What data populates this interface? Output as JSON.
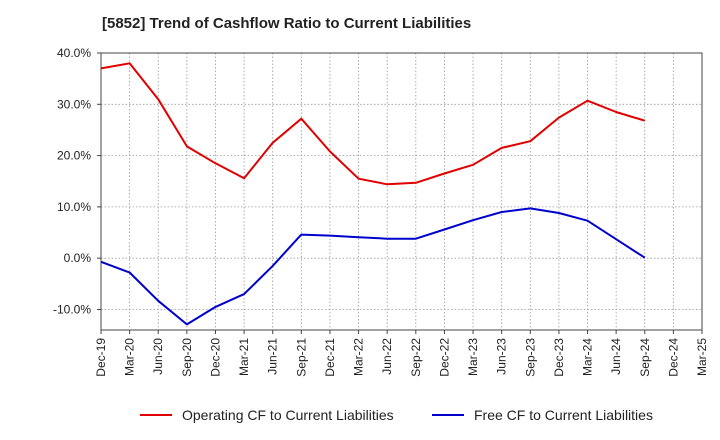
{
  "title": "[5852]  Trend of Cashflow Ratio to Current Liabilities",
  "chart_data": {
    "type": "line",
    "x": [
      "Dec-19",
      "Mar-20",
      "Jun-20",
      "Sep-20",
      "Dec-20",
      "Mar-21",
      "Jun-21",
      "Sep-21",
      "Dec-21",
      "Mar-22",
      "Jun-22",
      "Sep-22",
      "Dec-22",
      "Mar-23",
      "Jun-23",
      "Sep-23",
      "Dec-23",
      "Mar-24",
      "Jun-24",
      "Sep-24",
      "Dec-24",
      "Mar-25"
    ],
    "ylim": [
      -14,
      40
    ],
    "yticks": [
      40,
      30,
      20,
      10,
      0,
      -10
    ],
    "ytick_labels": [
      "40.0%",
      "30.0%",
      "20.0%",
      "10.0%",
      "0.0%",
      "-10.0%"
    ],
    "grid": true,
    "legend_position": "bottom",
    "series": [
      {
        "name": "Operating CF to Current Liabilities",
        "color": "#e00000",
        "values": [
          37.0,
          38.0,
          31.0,
          21.8,
          18.5,
          15.6,
          22.5,
          27.2,
          20.8,
          15.5,
          14.4,
          14.7,
          16.5,
          18.2,
          21.5,
          22.8,
          27.4,
          30.7,
          28.5,
          26.8,
          null,
          null
        ]
      },
      {
        "name": "Free CF to Current Liabilities",
        "color": "#0000cc",
        "values": [
          -0.7,
          -2.8,
          -8.3,
          -12.9,
          -9.5,
          -7.0,
          -1.5,
          4.6,
          4.4,
          4.1,
          3.8,
          3.8,
          5.6,
          7.4,
          9.0,
          9.7,
          8.8,
          7.3,
          3.7,
          0.1,
          null,
          null
        ]
      }
    ]
  }
}
